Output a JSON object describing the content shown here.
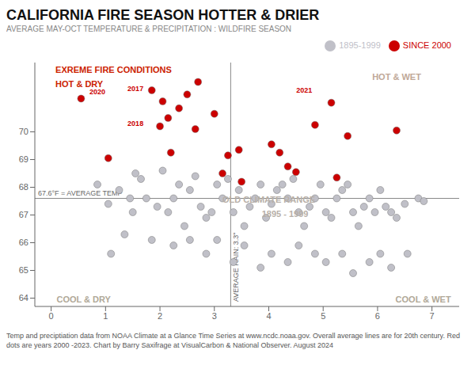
{
  "chart_data": {
    "type": "scatter",
    "title": "CALIFORNIA FIRE SEASON HOTTER & DRIER",
    "subtitle": "AVERAGE MAY-OCT TEMPERATURE & PRECIPITATION : WILDFIRE SEASON",
    "footer": "Temp and preciptiation data from NOAA Climate at a Glance Time Series at www.ncdc.noaa.gov. Overall average lines are for 20th century. Red dots are years 2000 -2023. Chart by Barry Saxifrage at VisualCarbon & National Observer. August 2024",
    "xlim": [
      -0.3,
      7.5
    ],
    "ylim": [
      63.7,
      72.5
    ],
    "xticks": [
      0,
      1,
      2,
      3,
      4,
      5,
      6,
      7
    ],
    "yticks": [
      64,
      65,
      66,
      67,
      68,
      69,
      70
    ],
    "grid": false,
    "legend": "upper right",
    "series": [
      {
        "name": "1895-1999",
        "color": "#c0c0c8",
        "x": [
          0.85,
          1.05,
          1.1,
          1.25,
          1.35,
          1.45,
          1.5,
          1.55,
          1.65,
          1.75,
          1.85,
          1.95,
          2.05,
          2.15,
          2.25,
          2.35,
          2.45,
          2.55,
          2.65,
          2.75,
          2.85,
          2.95,
          3.05,
          3.15,
          3.25,
          3.35,
          3.45,
          3.55,
          3.65,
          3.75,
          3.85,
          3.95,
          4.05,
          4.15,
          4.25,
          4.35,
          4.45,
          4.55,
          4.65,
          4.75,
          4.85,
          4.95,
          5.05,
          5.15,
          5.25,
          5.35,
          5.45,
          5.55,
          5.65,
          5.75,
          5.85,
          5.95,
          6.05,
          6.15,
          6.25,
          6.35,
          6.5,
          6.75,
          6.85,
          2.25,
          2.55,
          2.85,
          3.05,
          3.35,
          3.55,
          3.85,
          4.05,
          4.35,
          4.55,
          4.85,
          5.05,
          5.35,
          5.55,
          5.85,
          6.05,
          6.25,
          6.55
        ],
        "values": [
          68.1,
          67.4,
          65.6,
          67.9,
          66.3,
          67.6,
          67.1,
          68.5,
          68.3,
          67.6,
          66.1,
          67.3,
          68.6,
          67.1,
          67.6,
          68.1,
          66.6,
          67.9,
          68.4,
          67.3,
          66.9,
          67.1,
          68.1,
          67.6,
          68.3,
          67.1,
          67.9,
          66.6,
          67.3,
          67.6,
          68.1,
          66.9,
          67.4,
          67.9,
          68.1,
          67.6,
          68.3,
          67.1,
          66.6,
          67.3,
          67.6,
          68.1,
          67.1,
          66.9,
          67.6,
          67.9,
          68.1,
          67.1,
          66.6,
          67.3,
          67.6,
          67.1,
          67.9,
          67.3,
          67.1,
          66.9,
          67.4,
          67.6,
          67.5,
          65.9,
          66.1,
          65.6,
          66.1,
          65.3,
          65.9,
          65.1,
          65.6,
          65.3,
          65.9,
          65.6,
          65.3,
          65.6,
          64.9,
          65.3,
          65.6,
          65.1,
          65.6
        ]
      },
      {
        "name": "SINCE 2000",
        "color": "#cc0000",
        "x": [
          0.55,
          1.05,
          1.85,
          2.0,
          2.05,
          2.15,
          2.2,
          2.35,
          2.5,
          2.65,
          2.7,
          3.0,
          3.15,
          3.25,
          3.45,
          3.5,
          4.05,
          4.2,
          4.35,
          4.5,
          4.85,
          5.15,
          5.25,
          5.45,
          6.35
        ],
        "values": [
          71.2,
          69.05,
          71.5,
          70.2,
          71.1,
          70.5,
          69.25,
          70.85,
          71.35,
          70.1,
          71.8,
          70.65,
          68.5,
          69.15,
          69.35,
          68.2,
          69.55,
          69.25,
          68.75,
          68.55,
          70.25,
          71.05,
          68.35,
          69.85,
          70.05
        ]
      }
    ],
    "reference_lines": [
      {
        "axis": "y",
        "value": 67.6,
        "label": "67.6°F = AVERAGE TEMP"
      },
      {
        "axis": "x",
        "value": 3.3,
        "label": "AVERAGE RAIN: 3.3\""
      }
    ],
    "annotations": [
      {
        "text": "2020",
        "x": 0.85,
        "y": 71.45,
        "color": "#cc0000"
      },
      {
        "text": "2017",
        "x": 1.55,
        "y": 71.55,
        "color": "#cc0000"
      },
      {
        "text": "2018",
        "x": 1.55,
        "y": 70.3,
        "color": "#cc0000"
      },
      {
        "text": "2021",
        "x": 4.65,
        "y": 71.5,
        "color": "#cc0000"
      },
      {
        "text": "OLD CLIMATE RANGE",
        "x": 4.0,
        "y": 67.55,
        "color": "#b8b0a8"
      },
      {
        "text": "1895 - 1999",
        "x": 4.3,
        "y": 67.05,
        "color": "#b8b0a8"
      },
      {
        "text": "COOL & DRY",
        "x": 0.1,
        "y": 63.85,
        "color": "#b0a898"
      },
      {
        "text": "COOL & WET",
        "x": 7.35,
        "y": 63.85,
        "color": "#b0a898"
      },
      {
        "text": "HOT & WET",
        "x": 6.8,
        "y": 72.1,
        "color": "#c0a898"
      },
      {
        "text": "EXREME FIRE CONDITIONS",
        "x": 0.08,
        "y": 72.35,
        "color": "#cc2200"
      },
      {
        "text": "HOT & DRY",
        "x": 0.08,
        "y": 71.85,
        "color": "#cc2200"
      }
    ]
  }
}
